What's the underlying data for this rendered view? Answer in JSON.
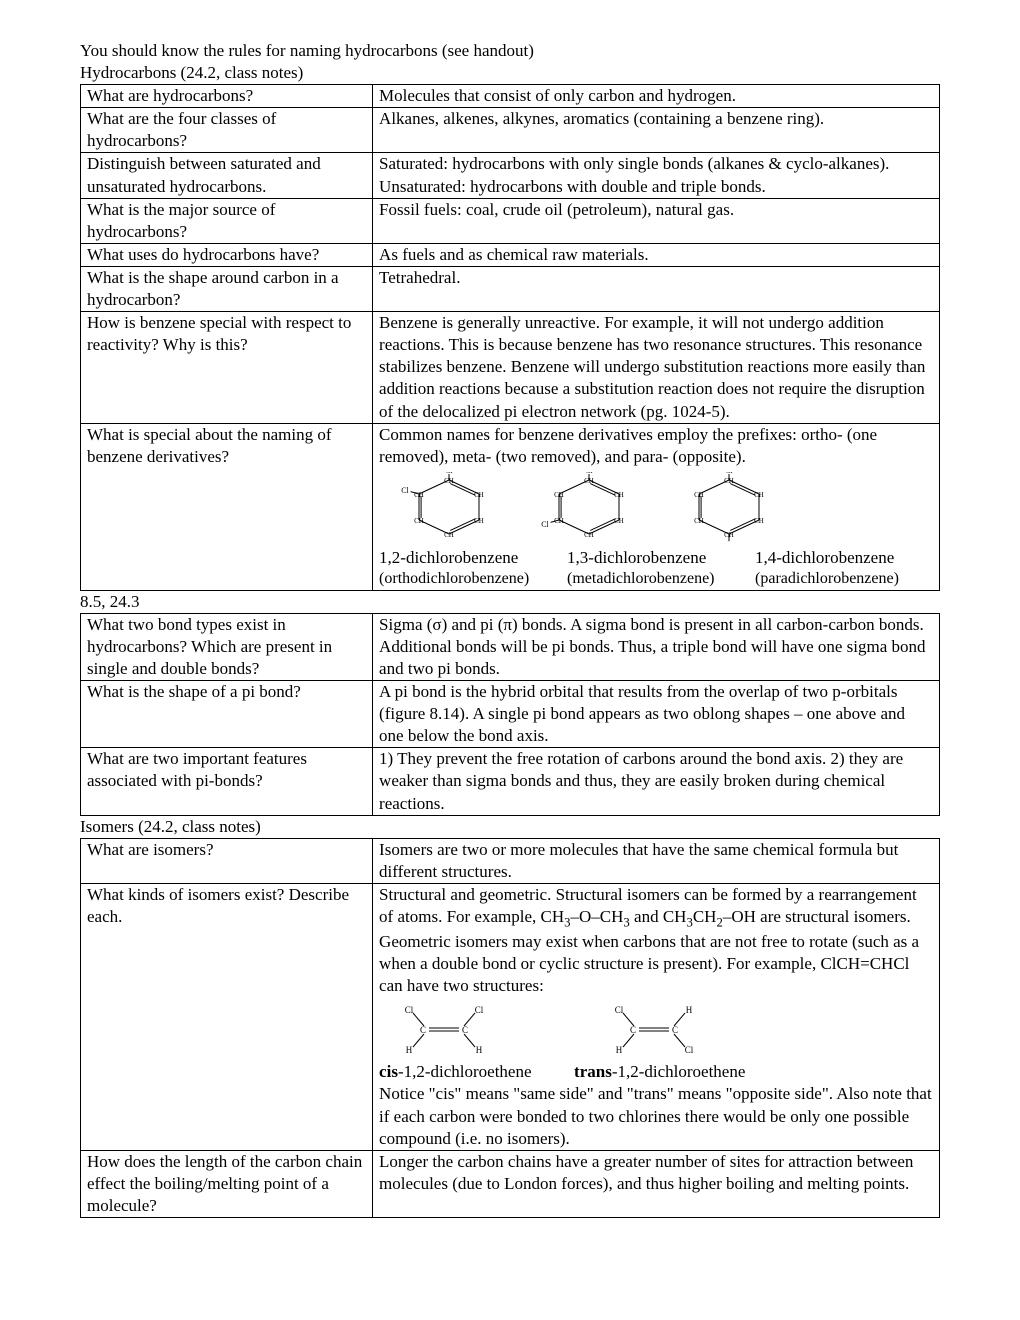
{
  "intro": {
    "line1": "You should know the rules for naming hydrocarbons (see handout)",
    "line2": "Hydrocarbons (24.2, class notes)"
  },
  "table1": [
    {
      "q": "What are hydrocarbons?",
      "a": "Molecules that consist of only carbon and hydrogen."
    },
    {
      "q": "What are the four classes of hydrocarbons?",
      "a": "Alkanes, alkenes, alkynes, aromatics (containing a benzene ring)."
    },
    {
      "q": "Distinguish between saturated and unsaturated hydrocarbons.",
      "a": "Saturated: hydrocarbons with only single bonds (alkanes & cyclo-alkanes). Unsaturated: hydrocarbons with double and triple bonds."
    },
    {
      "q": "What is the major source of hydrocarbons?",
      "a": "Fossil fuels: coal, crude oil (petroleum), natural gas."
    },
    {
      "q": "What uses do hydrocarbons have?",
      "a": "As fuels and as chemical raw materials."
    },
    {
      "q": "What is the shape around carbon in a hydrocarbon?",
      "a": "Tetrahedral."
    },
    {
      "q": "How is benzene special with respect to reactivity?  Why is this?",
      "a": "Benzene is generally unreactive.  For example, it will not undergo addition reactions.  This is because benzene has two resonance structures.  This resonance stabilizes benzene.  Benzene will undergo substitution reactions more easily than addition reactions because a substitution reaction does not require the disruption of the delocalized pi electron network (pg. 1024-5)."
    },
    {
      "q": "What is special about the naming of benzene derivatives?",
      "a": "Common names for  benzene derivatives employ the prefixes: ortho- (one removed), meta- (two removed), and para- (opposite).",
      "special": "benzene"
    }
  ],
  "benzene": {
    "labels": [
      "1,2-dichlorobenzene",
      "1,3-dichlorobenzene",
      "1,4-dichlorobenzene"
    ],
    "sublabels": [
      "(orthodichlorobenzene)",
      "(metadichlorobenzene)",
      "(paradichlorobenzene)"
    ]
  },
  "section2": "8.5, 24.3",
  "table2": [
    {
      "q": "What two bond types exist in hydrocarbons?  Which are present in single and double bonds?",
      "a": "Sigma (σ) and pi (π) bonds.  A sigma bond is present in all carbon-carbon bonds.  Additional bonds will be pi bonds.  Thus, a triple bond will have one sigma bond and two pi bonds."
    },
    {
      "q": "What is the shape of a pi bond?",
      "a": "A pi bond is the hybrid orbital that results from the overlap of two p-orbitals (figure 8.14).  A single pi bond appears as two oblong shapes – one above and one below the bond axis."
    },
    {
      "q": "What are two important features associated with pi-bonds?",
      "a": "1) They prevent the free rotation of carbons around the bond axis. 2) they are weaker than sigma bonds and thus, they are easily broken during chemical reactions."
    }
  ],
  "section3": "Isomers (24.2, class notes)",
  "table3": [
    {
      "q": "What are isomers?",
      "a": "Isomers are two or more molecules that have the same chemical formula but different structures."
    },
    {
      "q": "What kinds of isomers exist?  Describe each.",
      "special": "isomers"
    },
    {
      "q": "How does the length of the carbon chain effect the boiling/melting point of a molecule?",
      "a": "Longer the carbon chains have a greater number of sites for attraction between molecules (due to London forces), and thus higher boiling and melting points."
    }
  ],
  "isomers": {
    "intro_html": "Structural and geometric.  Structural isomers can be formed by a rearrangement of atoms.  For example, CH<sub>3</sub>–O–CH<sub>3</sub> and CH<sub>3</sub>CH<sub>2</sub>–OH are structural isomers.  Geometric isomers may exist when carbons that are not free to rotate (such as a when a double bond or cyclic structure is present).  For example, ClCH=CHCl can have two structures:",
    "labels_html": "<b>cis</b>-1,2-dichloroethene&nbsp;&nbsp;&nbsp;&nbsp;&nbsp;&nbsp;&nbsp;&nbsp;&nbsp;&nbsp;<b>trans</b>-1,2-dichloroethene",
    "outro": "Notice \"cis\" means \"same side\" and \"trans\" means \"opposite side\". Also note that if each carbon were bonded to two chlorines there would be only one possible compound (i.e. no isomers)."
  }
}
